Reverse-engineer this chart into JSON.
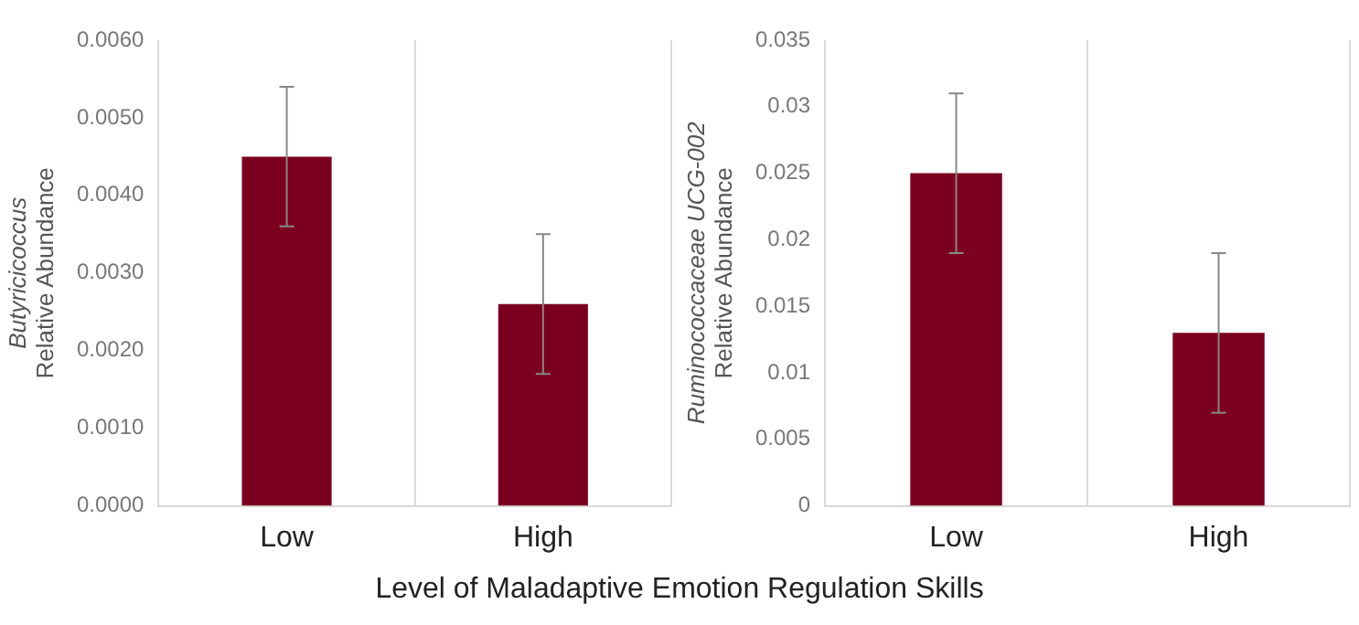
{
  "chart_data": [
    {
      "type": "bar",
      "categories": [
        "Low",
        "High"
      ],
      "ylabel": "Butyricicoccus\nRelative Abundance",
      "xlabel": "Level of Maladaptive Emotion Regulation Skills",
      "values": [
        0.0045,
        0.0026
      ],
      "errors": [
        0.0009,
        0.0009
      ],
      "color": "#7b0020",
      "ylim": [
        0,
        0.006
      ],
      "yticks": [
        {
          "value": 0,
          "label": "0.0000"
        },
        {
          "value": 0.001,
          "label": "0.0010"
        },
        {
          "value": 0.002,
          "label": "0.0020"
        },
        {
          "value": 0.003,
          "label": "0.0030"
        },
        {
          "value": 0.004,
          "label": "0.0040"
        },
        {
          "value": 0.005,
          "label": "0.0050"
        },
        {
          "value": 0.006,
          "label": "0.0060"
        }
      ],
      "grid": "x",
      "legend": false
    },
    {
      "type": "bar",
      "categories": [
        "Low",
        "High"
      ],
      "ylabel": "Ruminococcaceae UCG-002\nRelative Abundance",
      "values": [
        0.025,
        0.013
      ],
      "errors": [
        0.006,
        0.006
      ],
      "color": "#7b0020",
      "ylim": [
        0,
        0.035
      ],
      "yticks": [
        0,
        0.005,
        0.01,
        0.015,
        0.02,
        0.025,
        0.03,
        0.035
      ],
      "grid": "x",
      "legend": false
    }
  ]
}
